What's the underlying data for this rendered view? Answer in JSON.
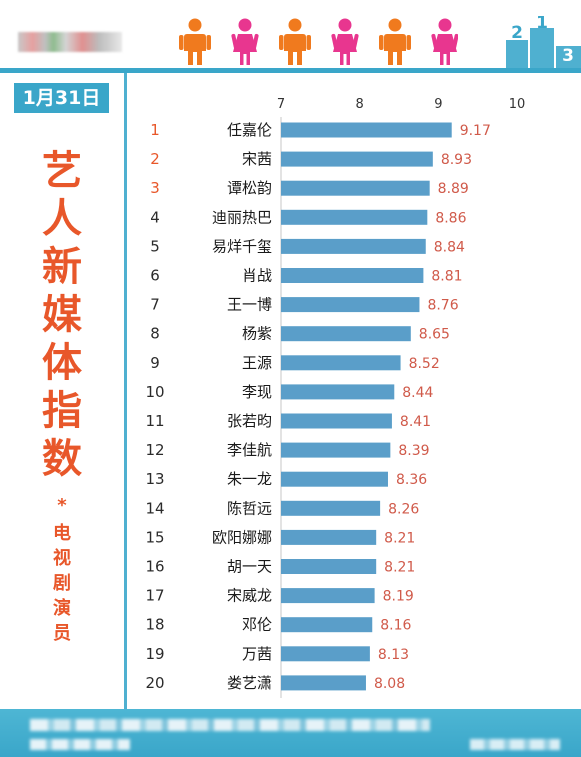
{
  "header": {
    "people_icons": [
      "person-male-icon",
      "person-female-icon",
      "person-male-icon",
      "person-female-icon",
      "person-male-icon",
      "person-female-icon"
    ],
    "podium_labels": [
      "2",
      "1",
      "3"
    ]
  },
  "sidebar": {
    "date": "1月31日",
    "title_chars": [
      "艺",
      "人",
      "新",
      "媒",
      "体",
      "指",
      "数"
    ],
    "separator": "*",
    "subtitle_chars": [
      "电",
      "视",
      "剧",
      "演",
      "员"
    ]
  },
  "colors": {
    "bar": "#5a9ec9",
    "accent": "#e8572a",
    "value_label": "#d05a4a",
    "teal": "#3aa6c9"
  },
  "chart_data": {
    "type": "bar",
    "orientation": "horizontal",
    "title": "艺人新媒体指数 * 电视剧演员",
    "xlim": [
      7,
      10
    ],
    "ticks": [
      "7",
      "8",
      "9",
      "10"
    ],
    "ranks": [
      "1",
      "2",
      "3",
      "4",
      "5",
      "6",
      "7",
      "8",
      "9",
      "10",
      "11",
      "12",
      "13",
      "14",
      "15",
      "16",
      "17",
      "18",
      "19",
      "20"
    ],
    "categories": [
      "任嘉伦",
      "宋茜",
      "谭松韵",
      "迪丽热巴",
      "易烊千玺",
      "肖战",
      "王一博",
      "杨紫",
      "王源",
      "李现",
      "张若昀",
      "李佳航",
      "朱一龙",
      "陈哲远",
      "欧阳娜娜",
      "胡一天",
      "宋威龙",
      "邓伦",
      "万茜",
      "娄艺潇"
    ],
    "values": [
      9.17,
      8.93,
      8.89,
      8.86,
      8.84,
      8.81,
      8.76,
      8.65,
      8.52,
      8.44,
      8.41,
      8.39,
      8.36,
      8.26,
      8.21,
      8.21,
      8.19,
      8.16,
      8.13,
      8.08
    ],
    "value_labels": [
      "9.17",
      "8.93",
      "8.89",
      "8.86",
      "8.84",
      "8.81",
      "8.76",
      "8.65",
      "8.52",
      "8.44",
      "8.41",
      "8.39",
      "8.36",
      "8.26",
      "8.21",
      "8.21",
      "8.19",
      "8.16",
      "8.13",
      "8.08"
    ],
    "grid": false
  }
}
